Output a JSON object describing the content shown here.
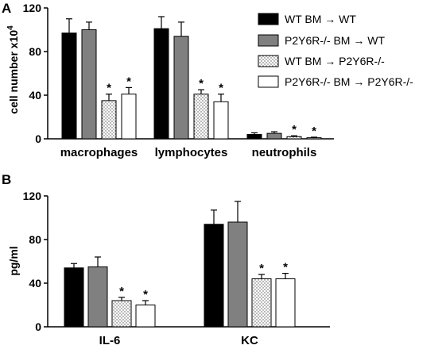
{
  "legend": [
    "WT BM → WT",
    "P2Y6R-/- BM → WT",
    "WT BM → P2Y6R-/-",
    "P2Y6R-/- BM → P2Y6R-/-"
  ],
  "series_colors": [
    "#000000",
    "#808080",
    "#ffffff",
    "#ffffff"
  ],
  "series_patterns": [
    "solid",
    "solid",
    "dotted",
    "plain"
  ],
  "chart_data": [
    {
      "panel_label": "A",
      "type": "bar",
      "ylabel": "cell number x10",
      "ylabel_superscript": "4",
      "ylim": [
        0,
        120
      ],
      "yticks": [
        "0",
        "40",
        "80",
        "120"
      ],
      "categories": [
        "macrophages",
        "lymphocytes",
        "neutrophils"
      ],
      "significance_marker": "*",
      "series": [
        {
          "name": "WT BM → WT",
          "values": [
            97,
            101,
            4
          ],
          "errors": [
            13,
            11,
            1.5
          ],
          "significant": [
            false,
            false,
            false
          ]
        },
        {
          "name": "P2Y6R-/- BM → WT",
          "values": [
            100,
            94,
            5
          ],
          "errors": [
            7,
            13,
            1.5
          ],
          "significant": [
            false,
            false,
            false
          ]
        },
        {
          "name": "WT BM → P2Y6R-/-",
          "values": [
            35,
            41,
            2
          ],
          "errors": [
            6,
            4,
            0.8
          ],
          "significant": [
            true,
            true,
            true
          ]
        },
        {
          "name": "P2Y6R-/- BM → P2Y6R-/-",
          "values": [
            41,
            34,
            1
          ],
          "errors": [
            6,
            7,
            0.5
          ],
          "significant": [
            true,
            true,
            true
          ]
        }
      ]
    },
    {
      "panel_label": "B",
      "type": "bar",
      "ylabel": "pg/ml",
      "ylim": [
        0,
        120
      ],
      "yticks": [
        "0",
        "40",
        "80",
        "120"
      ],
      "categories": [
        "IL-6",
        "KC"
      ],
      "significance_marker": "*",
      "series": [
        {
          "name": "WT BM → WT",
          "values": [
            54,
            94
          ],
          "errors": [
            4,
            13
          ],
          "significant": [
            false,
            false
          ]
        },
        {
          "name": "P2Y6R-/- BM → WT",
          "values": [
            55,
            96
          ],
          "errors": [
            9,
            19
          ],
          "significant": [
            false,
            false
          ]
        },
        {
          "name": "WT BM → P2Y6R-/-",
          "values": [
            24,
            44
          ],
          "errors": [
            3,
            4
          ],
          "significant": [
            true,
            true
          ]
        },
        {
          "name": "P2Y6R-/- BM → P2Y6R-/-",
          "values": [
            20,
            44
          ],
          "errors": [
            4,
            5
          ],
          "significant": [
            true,
            true
          ]
        }
      ]
    }
  ]
}
